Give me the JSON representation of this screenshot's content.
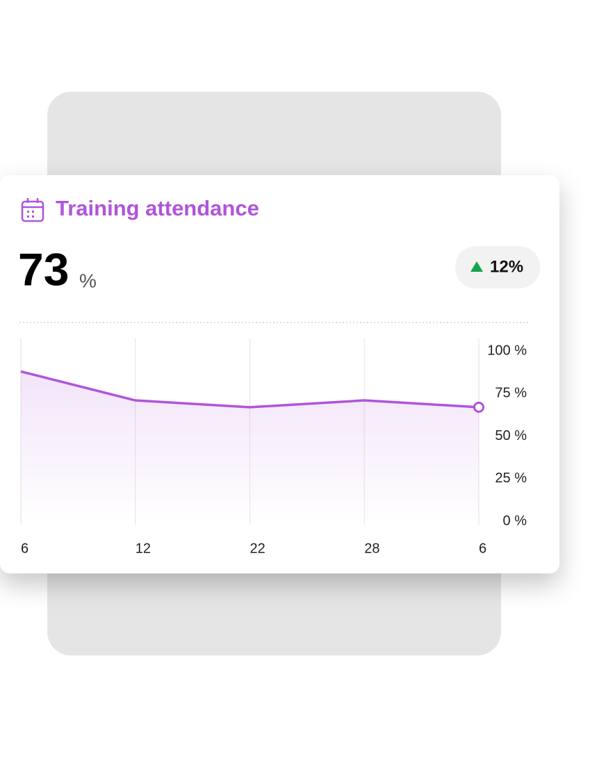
{
  "card": {
    "value": "73",
    "unit": "%",
    "change": "12%"
  },
  "chart_data": {
    "type": "line",
    "title": "Training attendance",
    "categories": [
      "6",
      "12",
      "22",
      "28",
      "6"
    ],
    "series": [
      {
        "color": "#b054dc",
        "values": [
          88,
          71,
          67,
          71,
          67
        ]
      }
    ],
    "ylim": [
      0,
      100
    ],
    "yticks": [
      {
        "value": 0,
        "label": "0 %"
      },
      {
        "value": 25,
        "label": "25 %"
      },
      {
        "value": 50,
        "label": "50 %"
      },
      {
        "value": 75,
        "label": "75 %"
      },
      {
        "value": 100,
        "label": "100 %"
      }
    ],
    "grid": true
  }
}
